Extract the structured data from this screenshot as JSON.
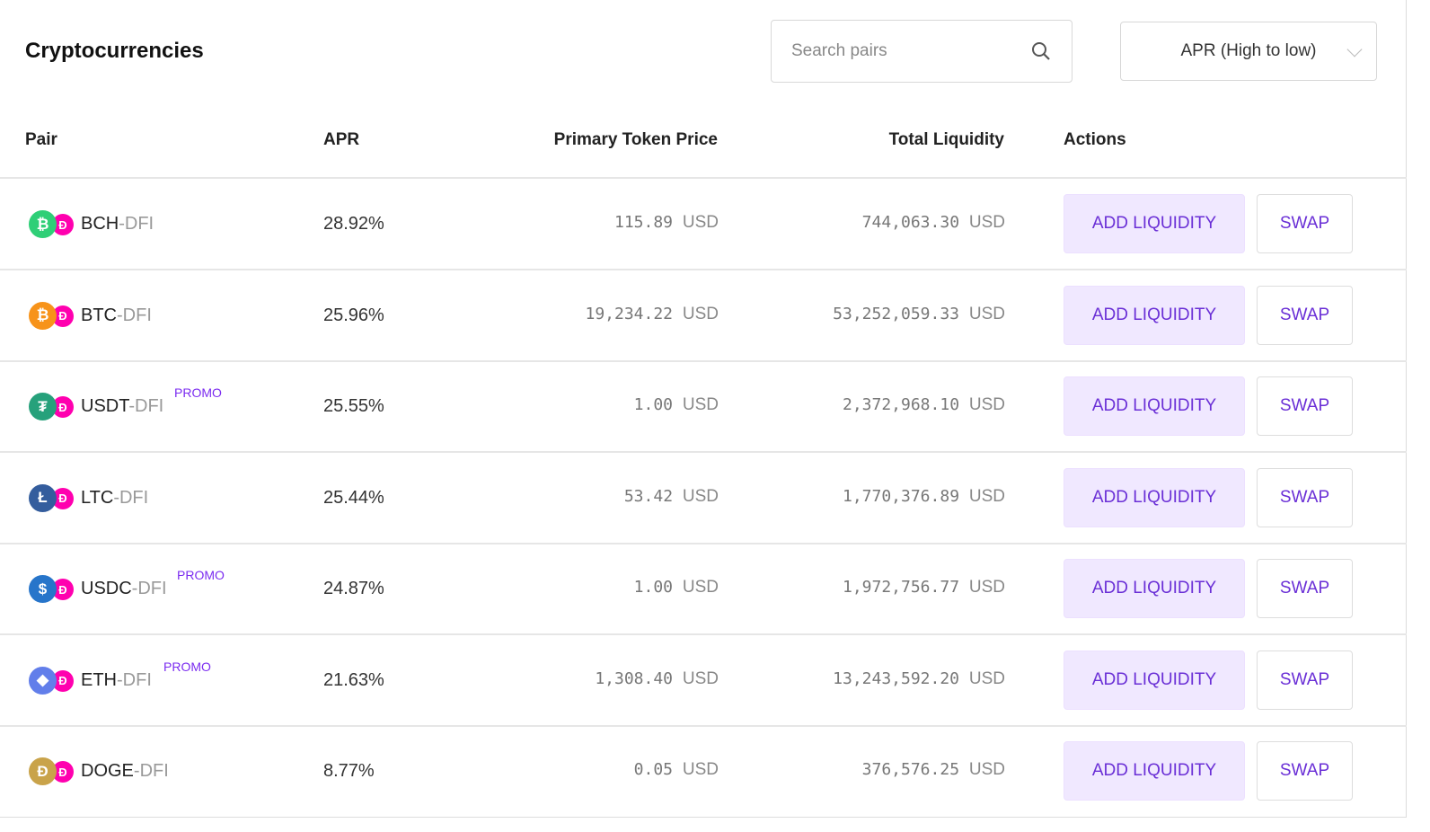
{
  "header": {
    "title": "Cryptocurrencies",
    "search_placeholder": "Search pairs",
    "sort_value": "APR (High to low)"
  },
  "columns": {
    "pair": "Pair",
    "apr": "APR",
    "price": "Primary Token Price",
    "liquidity": "Total Liquidity",
    "actions": "Actions"
  },
  "actions": {
    "add": "ADD LIQUIDITY",
    "swap": "SWAP"
  },
  "currency": "USD",
  "rows": [
    {
      "base": "BCH",
      "quote": "-DFI",
      "promo": "",
      "apr": "28.92%",
      "price": "115.89",
      "liquidity": "744,063.30",
      "icon": "bitcoin-cash-icon",
      "color": "#2fcf77",
      "glyph": "₿"
    },
    {
      "base": "BTC",
      "quote": "-DFI",
      "promo": "",
      "apr": "25.96%",
      "price": "19,234.22",
      "liquidity": "53,252,059.33",
      "icon": "bitcoin-icon",
      "color": "#f7931a",
      "glyph": "₿"
    },
    {
      "base": "USDT",
      "quote": "-DFI",
      "promo": "PROMO",
      "apr": "25.55%",
      "price": "1.00",
      "liquidity": "2,372,968.10",
      "icon": "tether-icon",
      "color": "#26a17b",
      "glyph": "₮"
    },
    {
      "base": "LTC",
      "quote": "-DFI",
      "promo": "",
      "apr": "25.44%",
      "price": "53.42",
      "liquidity": "1,770,376.89",
      "icon": "litecoin-icon",
      "color": "#345d9d",
      "glyph": "Ł"
    },
    {
      "base": "USDC",
      "quote": "-DFI",
      "promo": "PROMO",
      "apr": "24.87%",
      "price": "1.00",
      "liquidity": "1,972,756.77",
      "icon": "usdc-icon",
      "color": "#2775ca",
      "glyph": "$"
    },
    {
      "base": "ETH",
      "quote": "-DFI",
      "promo": "PROMO",
      "apr": "21.63%",
      "price": "1,308.40",
      "liquidity": "13,243,592.20",
      "icon": "ethereum-icon",
      "color": "#627eea",
      "glyph": "◆"
    },
    {
      "base": "DOGE",
      "quote": "-DFI",
      "promo": "",
      "apr": "8.77%",
      "price": "0.05",
      "liquidity": "376,576.25",
      "icon": "dogecoin-icon",
      "color": "#c9a34a",
      "glyph": "Ð"
    }
  ],
  "colors": {
    "accent": "#6a2fd6",
    "add_bg": "#f0e8ff",
    "dfi": "#ff00af"
  }
}
